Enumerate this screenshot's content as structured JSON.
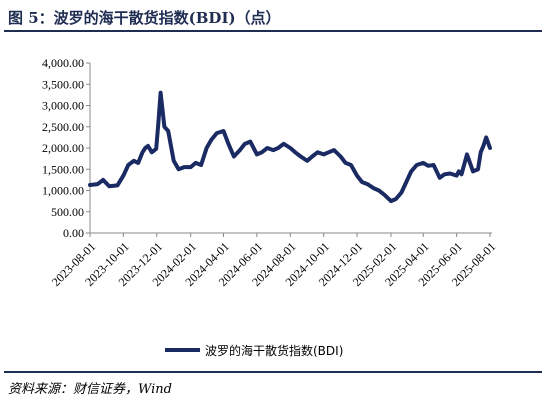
{
  "header": {
    "title": "图 5：波罗的海干散货指数(BDI)（点）"
  },
  "footer": {
    "source": "资料来源：财信证券，Wind"
  },
  "colors": {
    "series": "#1a2a63",
    "axis": "#888888",
    "title": "#1f2d52"
  },
  "chart_data": {
    "type": "line",
    "title": "",
    "xlabel": "",
    "ylabel": "",
    "ylim": [
      0,
      4000
    ],
    "yticks": [
      "4,000.00",
      "3,500.00",
      "3,000.00",
      "2,500.00",
      "2,000.00",
      "1,500.00",
      "1,000.00",
      "500.00",
      "0.00"
    ],
    "xticks": [
      "2023-08-01",
      "2023-10-01",
      "2023-12-01",
      "2024-02-01",
      "2024-04-01",
      "2024-06-01",
      "2024-08-01",
      "2024-10-01",
      "2024-12-01",
      "2025-02-01",
      "2025-04-01",
      "2025-06-01",
      "2025-08-01"
    ],
    "legend": {
      "position": "bottom",
      "label": "波罗的海干散货指数(BDI)"
    },
    "grid": false,
    "series": [
      {
        "name": "波罗的海干散货指数(BDI)",
        "x": [
          "2023-08-01",
          "2023-08-15",
          "2023-08-25",
          "2023-09-05",
          "2023-09-20",
          "2023-10-01",
          "2023-10-10",
          "2023-10-20",
          "2023-10-28",
          "2023-11-05",
          "2023-11-10",
          "2023-11-15",
          "2023-11-22",
          "2023-11-30",
          "2023-12-04",
          "2023-12-08",
          "2023-12-15",
          "2023-12-22",
          "2024-01-01",
          "2024-01-10",
          "2024-01-20",
          "2024-02-01",
          "2024-02-10",
          "2024-02-20",
          "2024-03-01",
          "2024-03-10",
          "2024-03-20",
          "2024-04-01",
          "2024-04-10",
          "2024-04-20",
          "2024-05-01",
          "2024-05-10",
          "2024-05-20",
          "2024-06-01",
          "2024-06-10",
          "2024-06-20",
          "2024-07-01",
          "2024-07-10",
          "2024-07-20",
          "2024-08-01",
          "2024-08-10",
          "2024-08-20",
          "2024-09-01",
          "2024-09-10",
          "2024-09-20",
          "2024-10-01",
          "2024-10-10",
          "2024-10-20",
          "2024-11-01",
          "2024-11-10",
          "2024-11-20",
          "2024-12-01",
          "2024-12-10",
          "2024-12-20",
          "2025-01-01",
          "2025-01-10",
          "2025-01-20",
          "2025-02-01",
          "2025-02-10",
          "2025-02-20",
          "2025-03-01",
          "2025-03-10",
          "2025-03-20",
          "2025-04-01",
          "2025-04-10",
          "2025-04-20",
          "2025-05-01",
          "2025-05-10",
          "2025-05-20",
          "2025-06-01",
          "2025-06-05",
          "2025-06-10",
          "2025-06-20",
          "2025-07-01",
          "2025-07-10",
          "2025-07-15",
          "2025-07-20",
          "2025-07-25",
          "2025-08-01"
        ],
        "values": [
          1130,
          1150,
          1250,
          1100,
          1120,
          1350,
          1600,
          1700,
          1650,
          1900,
          2000,
          2050,
          1900,
          1980,
          2600,
          3300,
          2500,
          2400,
          1700,
          1500,
          1550,
          1550,
          1650,
          1600,
          2000,
          2200,
          2350,
          2400,
          2100,
          1800,
          1950,
          2100,
          2150,
          1850,
          1900,
          2000,
          1950,
          2000,
          2100,
          2000,
          1900,
          1800,
          1700,
          1800,
          1900,
          1850,
          1900,
          1950,
          1800,
          1650,
          1600,
          1350,
          1200,
          1150,
          1050,
          1000,
          900,
          750,
          800,
          950,
          1200,
          1450,
          1600,
          1650,
          1580,
          1600,
          1300,
          1380,
          1400,
          1350,
          1450,
          1380,
          1850,
          1450,
          1500,
          1900,
          2050,
          2250,
          2000
        ]
      }
    ]
  }
}
